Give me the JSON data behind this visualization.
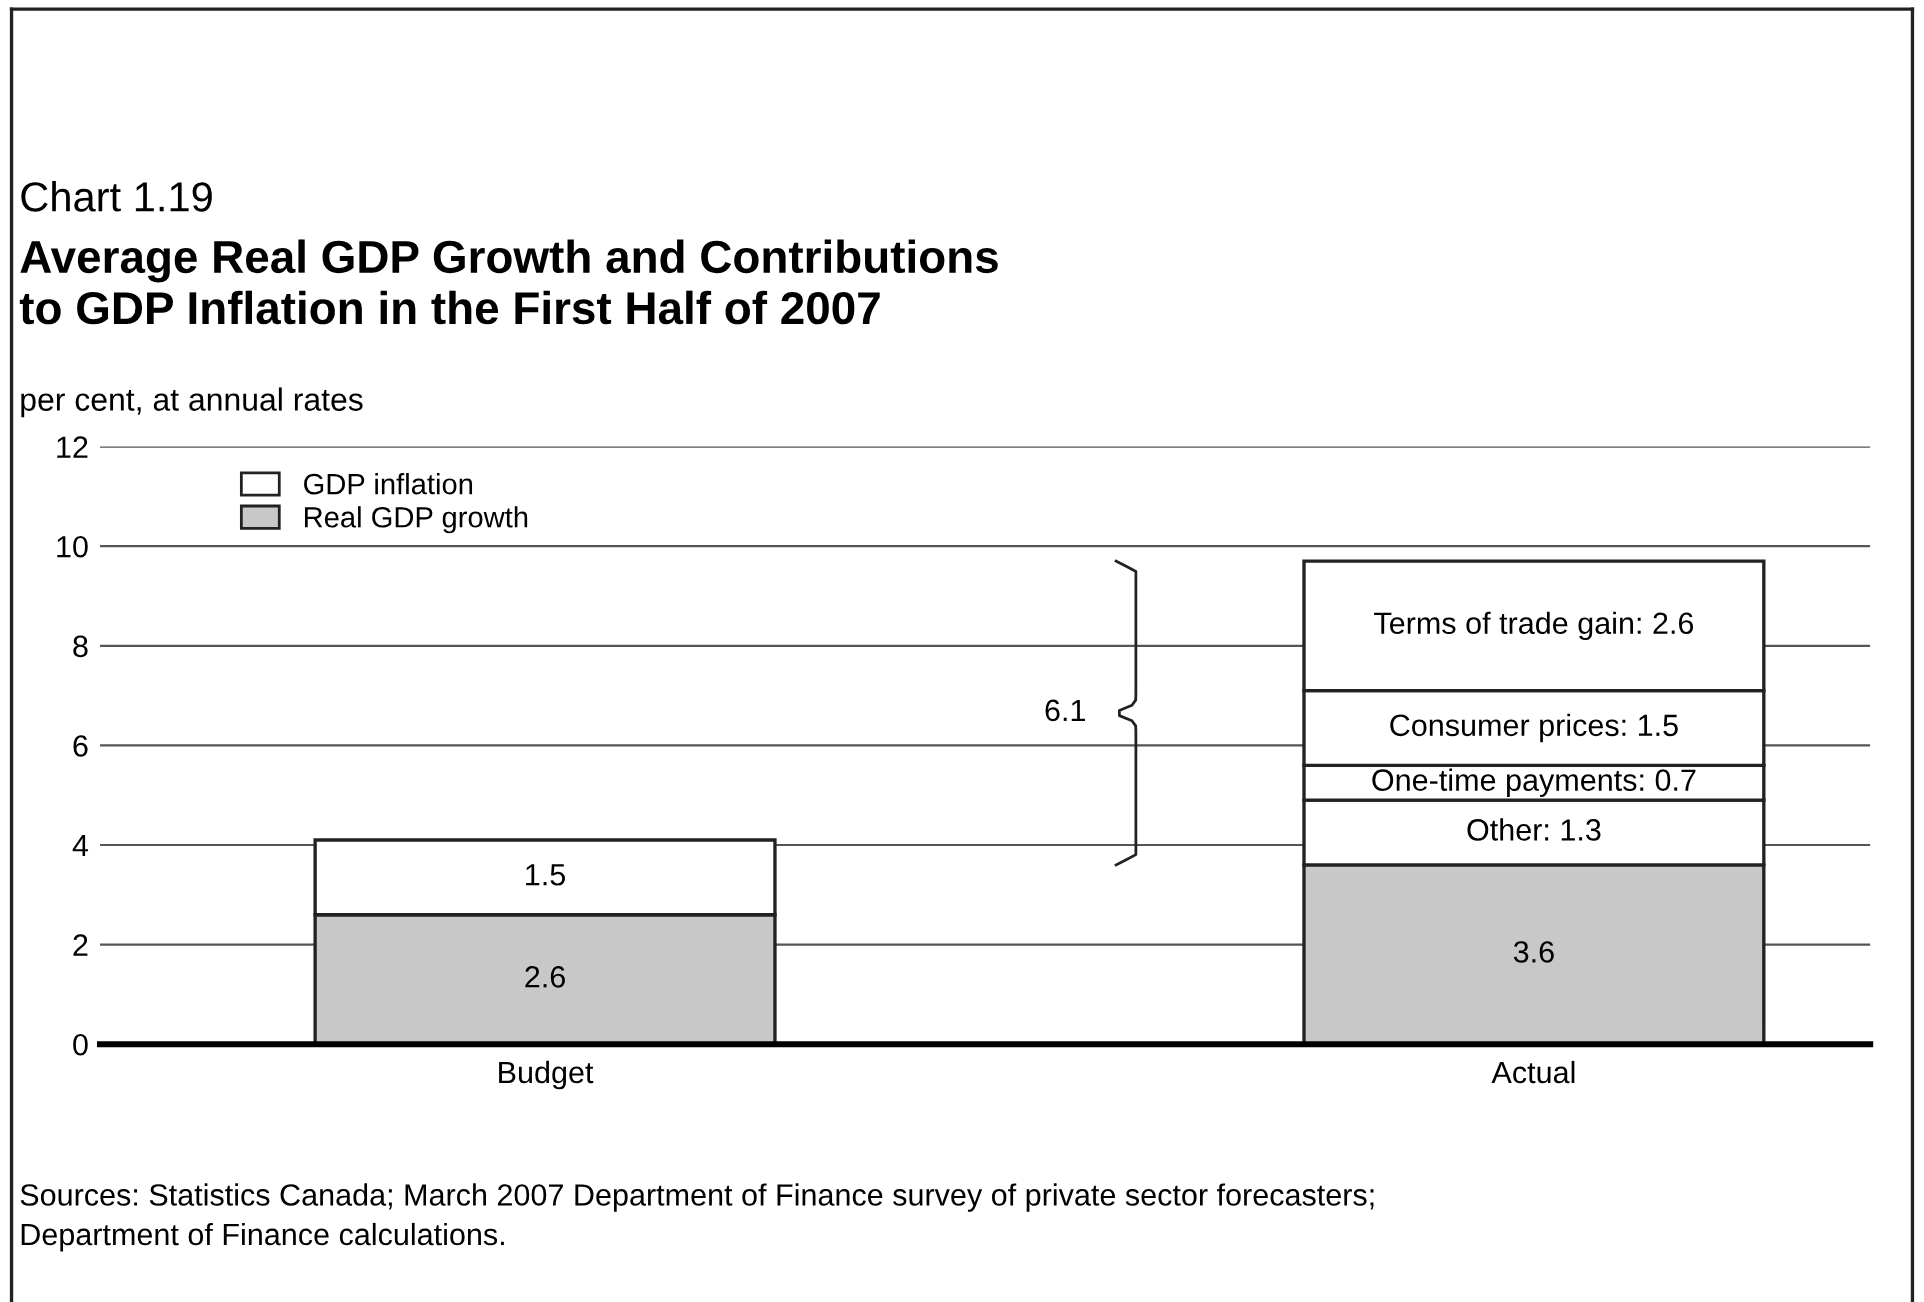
{
  "chart_data": {
    "type": "bar",
    "stacked": true,
    "title": "Chart 1.19",
    "subtitle": "Average Real GDP Growth and Contributions\nto GDP Inflation in the First Half of 2007",
    "ylabel": "per cent, at annual rates",
    "categories": [
      "Budget",
      "Actual"
    ],
    "series": [
      {
        "name": "Real GDP growth",
        "color": "#c8c8c8",
        "values": [
          2.6,
          3.6
        ],
        "value_labels": [
          "2.6",
          "3.6"
        ]
      },
      {
        "name": "GDP inflation",
        "color": "#ffffff",
        "values": [
          1.5,
          1.3
        ],
        "value_labels": [
          "1.5",
          "Other: 1.3"
        ]
      },
      {
        "color": "#ffffff",
        "values": [
          null,
          0.7
        ],
        "value_labels": [
          null,
          "One-time payments: 0.7"
        ]
      },
      {
        "color": "#ffffff",
        "values": [
          null,
          1.5
        ],
        "value_labels": [
          null,
          "Consumer prices: 1.5"
        ]
      },
      {
        "color": "#ffffff",
        "values": [
          null,
          2.6
        ],
        "value_labels": [
          null,
          "Terms of trade gain: 2.6"
        ]
      }
    ],
    "ylim": [
      0,
      12
    ],
    "yticks": [
      0,
      2,
      4,
      6,
      8,
      10,
      12
    ],
    "grid": "y",
    "legend": "top left",
    "annotations": [
      "6.1",
      "Sources: Statistics Canada; March 2007 Department of Finance survey of private sector forecasters;\nDepartment of Finance calculations."
    ]
  }
}
